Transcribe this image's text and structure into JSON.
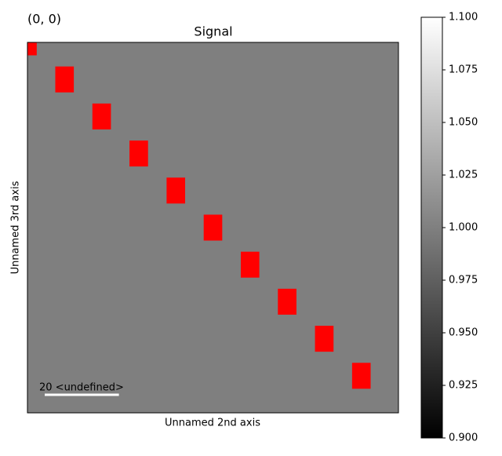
{
  "chart_data": {
    "type": "image",
    "title": "Signal",
    "corner_label": "(0, 0)",
    "corner_label_color": "#ff0000",
    "xlabel": "Unnamed 2nd axis",
    "ylabel": "Unnamed 3rd axis",
    "xlim": [
      0,
      100
    ],
    "ylim": [
      100,
      0
    ],
    "value": 1,
    "colorbar": {
      "lim": [
        0.9,
        1.1
      ],
      "ticks": [
        {
          "value": 0.9,
          "label": "0.900"
        },
        {
          "value": 0.925,
          "label": "0.925"
        },
        {
          "value": 0.95,
          "label": "0.950"
        },
        {
          "value": 0.975,
          "label": "0.975"
        },
        {
          "value": 1,
          "label": "1.000"
        },
        {
          "value": 1.025,
          "label": "1.025"
        },
        {
          "value": 1.05,
          "label": "1.050"
        },
        {
          "value": 1.075,
          "label": "1.075"
        },
        {
          "value": 1.1,
          "label": "1.100"
        }
      ]
    },
    "markers": {
      "color": "#ff0000",
      "x": [
        0,
        10,
        20,
        30,
        40,
        50,
        60,
        70,
        80,
        90
      ],
      "y": [
        0,
        10,
        20,
        30,
        40,
        50,
        60,
        70,
        80,
        90
      ],
      "width": 5,
      "height": 7
    },
    "scalebar": {
      "length": 20,
      "label": "20 <undefined>",
      "color": "#ffffff"
    }
  }
}
